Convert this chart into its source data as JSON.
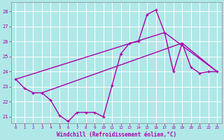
{
  "xlabel": "Windchill (Refroidissement éolien,°C)",
  "background_color": "#b0e8e8",
  "grid_color": "#ffffff",
  "line_color": "#aa00aa",
  "xlim": [
    -0.5,
    23.5
  ],
  "ylim": [
    20.6,
    28.6
  ],
  "yticks": [
    21,
    22,
    23,
    24,
    25,
    26,
    27,
    28
  ],
  "xticks": [
    0,
    1,
    2,
    3,
    4,
    5,
    6,
    7,
    8,
    9,
    10,
    11,
    12,
    13,
    14,
    15,
    16,
    17,
    18,
    19,
    20,
    21,
    22,
    23
  ],
  "series_main": {
    "x": [
      0,
      1,
      2,
      3,
      4,
      5,
      6,
      7,
      8,
      9,
      10,
      11,
      12,
      13,
      14,
      15,
      16,
      17,
      18,
      19,
      20,
      21,
      22,
      23
    ],
    "y": [
      23.5,
      22.9,
      22.6,
      22.6,
      22.1,
      21.1,
      20.7,
      21.3,
      21.3,
      21.3,
      21.0,
      23.1,
      25.2,
      25.9,
      26.0,
      27.8,
      28.1,
      26.6,
      24.0,
      25.9,
      24.3,
      23.9,
      24.0,
      24.0
    ]
  },
  "line1": {
    "x": [
      0,
      17,
      23
    ],
    "y": [
      23.5,
      26.6,
      24.0
    ]
  },
  "line2": {
    "x": [
      3,
      19,
      23
    ],
    "y": [
      22.6,
      25.9,
      24.0
    ]
  }
}
